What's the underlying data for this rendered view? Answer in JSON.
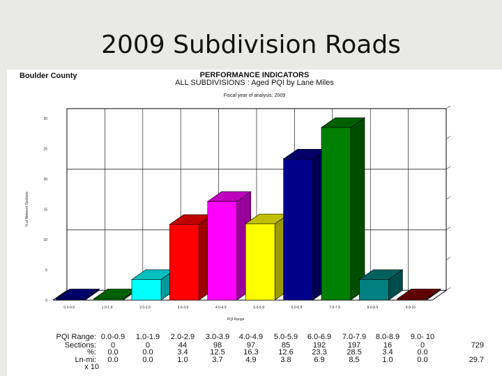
{
  "slide": {
    "title": "2009 Subdivision Roads"
  },
  "panel": {
    "org": "Boulder County",
    "title": "PERFORMANCE INDICATORS",
    "subtitle": "ALL SUBDIVISIONS : Aged PQI by Lane Miles",
    "analysis_year": "Fiscal year of analysis: 2009"
  },
  "chart_data": {
    "type": "bar",
    "style": "3d",
    "categories": [
      "0.0-0.9",
      "1.0-1.9",
      "2.0-2.9",
      "3.0-3.9",
      "4.0-4.9",
      "5.0-5.9",
      "6.0-6.9",
      "7.0-7.9",
      "8.0-8.9",
      "9.0-10"
    ],
    "values": [
      0.0,
      0.0,
      3.4,
      12.5,
      16.3,
      12.6,
      23.3,
      28.5,
      3.4,
      0.0
    ],
    "colors": [
      "#00008b",
      "#008000",
      "#00ffff",
      "#ff0000",
      "#ff00ff",
      "#ffff00",
      "#00008b",
      "#008000",
      "#008080",
      "#800000"
    ],
    "ylabel": "% of Network Sections",
    "xlabel": "PQI Range",
    "ylim": [
      0,
      30
    ],
    "yticks": [
      "0",
      "5",
      "10",
      "15",
      "20",
      "25",
      "30"
    ],
    "grid": true
  },
  "stats": {
    "rows": [
      {
        "label": "PQI Range:",
        "values": [
          "0.0-0.9",
          "1.0-1.9",
          "2.0-2.9",
          "3.0-3.9",
          "4.0-4.9",
          "5.0-5.9",
          "6.0-6.9",
          "7.0-7.9",
          "8.0-8.9",
          "9.0- 10"
        ],
        "total": ""
      },
      {
        "label": "Sections:",
        "values": [
          "0",
          "0",
          "44",
          "98",
          "97",
          "85",
          "192",
          "197",
          "16",
          "0"
        ],
        "total": "729"
      },
      {
        "label": "%:",
        "values": [
          "0.0",
          "0.0",
          "3.4",
          "12.5",
          "16.3",
          "12.6",
          "23.3",
          "28.5",
          "3.4",
          "0.0"
        ],
        "total": ""
      },
      {
        "label": "Ln-mi:",
        "values": [
          "0.0",
          "0.0",
          "1.0",
          "3.7",
          "4.9",
          "3.8",
          "6.9",
          "8.5",
          "1.0",
          "0.0"
        ],
        "total": "29.7"
      },
      {
        "label": "x 10",
        "values": [],
        "total": ""
      }
    ]
  }
}
